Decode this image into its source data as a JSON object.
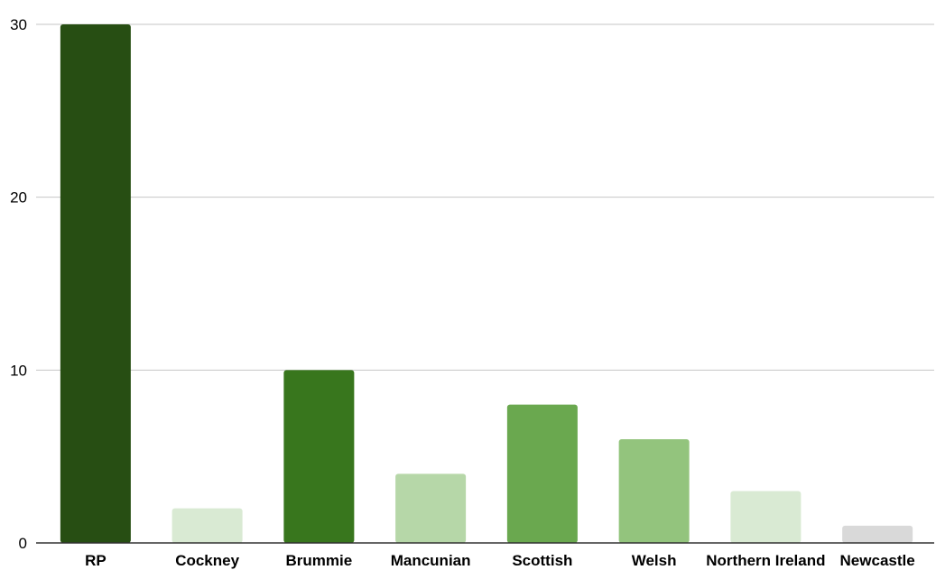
{
  "chart_data": {
    "type": "bar",
    "title": "",
    "xlabel": "",
    "ylabel": "",
    "categories": [
      "RP",
      "Cockney",
      "Brummie",
      "Mancunian",
      "Scottish",
      "Welsh",
      "Northern Ireland",
      "Newcastle"
    ],
    "values": [
      30,
      2,
      10,
      4,
      8,
      6,
      3,
      1
    ],
    "colors": [
      "#274e13",
      "#d9ead3",
      "#38761d",
      "#b6d7a8",
      "#6aa84f",
      "#93c47d",
      "#d9ead3",
      "#d9d9d9"
    ],
    "ylim": [
      0,
      30
    ],
    "yticks": [
      0,
      10,
      20,
      30
    ],
    "grid": true,
    "legend": "none"
  }
}
